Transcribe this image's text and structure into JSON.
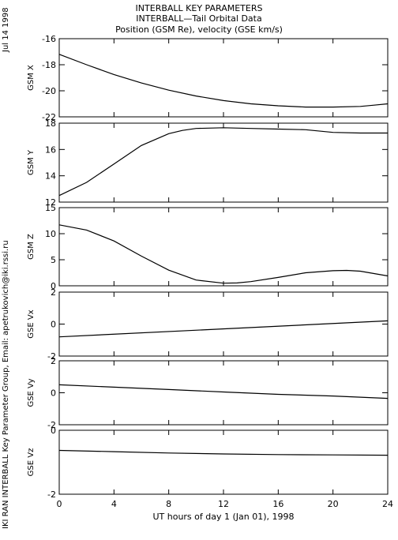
{
  "header": {
    "line1": "INTERBALL KEY PARAMETERS",
    "line2": "INTERBALL—Tail Orbital Data",
    "line3": "Position (GSM Re), velocity (GSE km/s)"
  },
  "side_text": {
    "date": "Jul 14 1998",
    "credit": "IKI RAN INTERBALL Key Parameter Group, Email: apetrukovich@iki.rssi.ru"
  },
  "chart_data": [
    {
      "type": "line",
      "ylabel": "GSM X",
      "ylim": [
        -22,
        -16
      ],
      "yticks": [
        -22,
        -20,
        -18,
        -16
      ],
      "x": [
        0,
        2,
        4,
        6,
        8,
        10,
        12,
        14,
        16,
        18,
        20,
        22,
        23,
        24
      ],
      "y": [
        -17.2,
        -18.0,
        -18.75,
        -19.4,
        -19.95,
        -20.4,
        -20.75,
        -21.0,
        -21.15,
        -21.25,
        -21.25,
        -21.2,
        -21.1,
        -21.0
      ]
    },
    {
      "type": "line",
      "ylabel": "GSM Y",
      "ylim": [
        12,
        18
      ],
      "yticks": [
        12,
        14,
        16,
        18
      ],
      "x": [
        0,
        2,
        4,
        6,
        8,
        9,
        10,
        12,
        14,
        16,
        18,
        20,
        22,
        24
      ],
      "y": [
        12.5,
        13.5,
        14.9,
        16.3,
        17.2,
        17.45,
        17.6,
        17.65,
        17.6,
        17.55,
        17.5,
        17.3,
        17.25,
        17.25
      ]
    },
    {
      "type": "line",
      "ylabel": "GSM Z",
      "ylim": [
        0,
        15
      ],
      "yticks": [
        0,
        5,
        10,
        15
      ],
      "x": [
        0,
        2,
        4,
        6,
        8,
        10,
        12,
        13,
        14,
        16,
        18,
        20,
        21,
        22,
        24
      ],
      "y": [
        11.7,
        10.7,
        8.6,
        5.7,
        3.0,
        1.1,
        0.5,
        0.55,
        0.8,
        1.6,
        2.5,
        2.9,
        2.95,
        2.8,
        1.9
      ]
    },
    {
      "type": "line",
      "ylabel": "GSE Vx",
      "ylim": [
        -2,
        2
      ],
      "yticks": [
        -2,
        0,
        2
      ],
      "x": [
        0,
        24
      ],
      "y": [
        -0.8,
        0.2
      ]
    },
    {
      "type": "line",
      "ylabel": "GSE Vy",
      "ylim": [
        -2,
        2
      ],
      "yticks": [
        -2,
        0,
        2
      ],
      "x": [
        0,
        4,
        8,
        12,
        16,
        20,
        24
      ],
      "y": [
        0.5,
        0.35,
        0.2,
        0.05,
        -0.1,
        -0.2,
        -0.35
      ]
    },
    {
      "type": "line",
      "ylabel": "GSE Vz",
      "ylim": [
        -2,
        0
      ],
      "yticks": [
        -2,
        0
      ],
      "x": [
        0,
        4,
        8,
        12,
        16,
        20,
        24
      ],
      "y": [
        -0.63,
        -0.67,
        -0.71,
        -0.74,
        -0.76,
        -0.77,
        -0.78
      ]
    }
  ],
  "x_axis": {
    "ticks": [
      0,
      4,
      8,
      12,
      16,
      20,
      24
    ],
    "range": [
      0,
      24
    ],
    "label": "UT hours of day   1 (Jan 01), 1998"
  }
}
